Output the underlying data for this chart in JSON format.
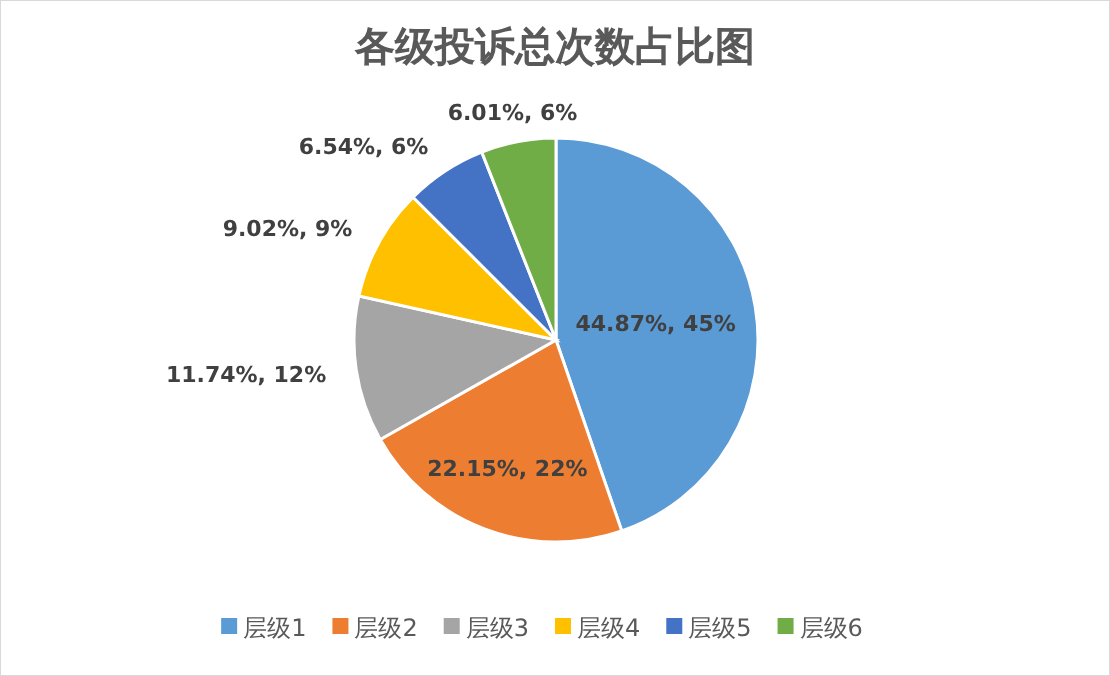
{
  "chart_data": {
    "type": "pie",
    "title": "各级投诉总次数占比图",
    "categories": [
      "层级1",
      "层级2",
      "层级3",
      "层级4",
      "层级5",
      "层级6"
    ],
    "values": [
      44.87,
      22.15,
      11.74,
      9.02,
      6.54,
      6.01
    ],
    "colors": [
      "#5b9bd5",
      "#ed7d31",
      "#a5a5a5",
      "#ffc000",
      "#4472c4",
      "#70ad47"
    ],
    "value_labels": [
      "44.87%, 45%",
      "22.15%, 22%",
      "11.74%, 12%",
      "9.02%, 9%",
      "6.54%, 6%",
      "6.01%, 6%"
    ],
    "legend": "bottom"
  }
}
